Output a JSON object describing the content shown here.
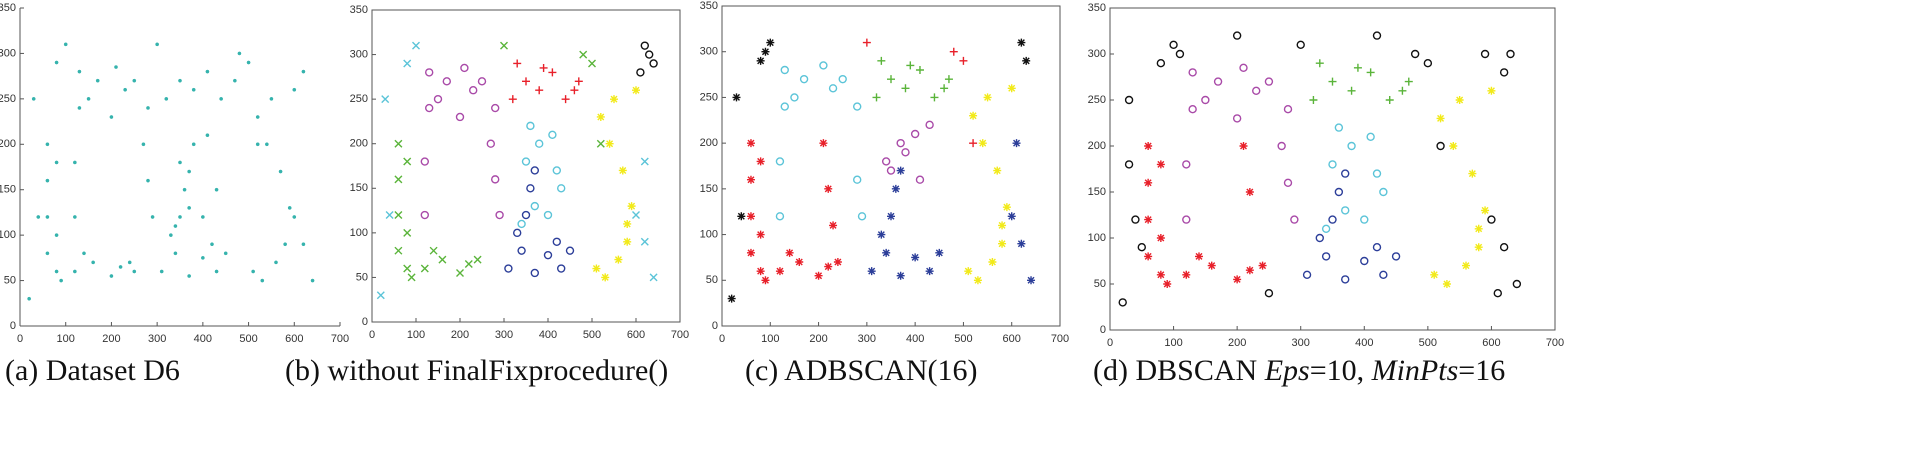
{
  "chart_data": [
    {
      "type": "scatter",
      "caption": "(a) Dataset D6",
      "frame": false,
      "xlim": [
        0,
        700
      ],
      "ylim": [
        0,
        350
      ],
      "xticks": [
        0,
        100,
        200,
        300,
        400,
        500,
        600,
        700
      ],
      "yticks": [
        0,
        50,
        100,
        150,
        200,
        250,
        300,
        350
      ],
      "series": [
        {
          "color": "#35b3ad",
          "marker": ".",
          "x": [
            60,
            60,
            60,
            60,
            80,
            80,
            80,
            120,
            160,
            200,
            240,
            90,
            140,
            220,
            120,
            120,
            130,
            130,
            170,
            210,
            250,
            280,
            280,
            290,
            150,
            230,
            200,
            270,
            310,
            340,
            370,
            400,
            430,
            450,
            350,
            360,
            370,
            330,
            420,
            340,
            370,
            400,
            430,
            350,
            380,
            410,
            320,
            350,
            380,
            410,
            440,
            470,
            510,
            530,
            560,
            580,
            590,
            570,
            540,
            520,
            550,
            600,
            20,
            40,
            80,
            100,
            250,
            300,
            480,
            500,
            520,
            600,
            620,
            640,
            30,
            620
          ],
          "y": [
            200,
            160,
            120,
            80,
            60,
            180,
            100,
            60,
            70,
            55,
            70,
            50,
            80,
            65,
            120,
            180,
            240,
            280,
            270,
            285,
            270,
            240,
            160,
            120,
            250,
            260,
            230,
            200,
            60,
            80,
            55,
            75,
            60,
            80,
            120,
            150,
            170,
            100,
            90,
            110,
            130,
            120,
            150,
            180,
            200,
            210,
            250,
            270,
            260,
            280,
            250,
            270,
            60,
            50,
            70,
            90,
            130,
            170,
            200,
            230,
            250,
            260,
            30,
            120,
            290,
            310,
            60,
            310,
            300,
            290,
            200,
            120,
            90,
            50,
            250,
            280
          ]
        }
      ]
    },
    {
      "type": "scatter",
      "caption": "(b) without FinalFixprocedure()",
      "frame": true,
      "xlim": [
        0,
        700
      ],
      "ylim": [
        0,
        350
      ],
      "xticks": [
        0,
        100,
        200,
        300,
        400,
        500,
        600,
        700
      ],
      "yticks": [
        0,
        50,
        100,
        150,
        200,
        250,
        300,
        350
      ],
      "series": [
        {
          "color": "#5ab43a",
          "marker": "x",
          "x": [
            60,
            60,
            60,
            60,
            80,
            80,
            80,
            120,
            160,
            200,
            240,
            90,
            140,
            220
          ],
          "y": [
            200,
            160,
            120,
            80,
            60,
            180,
            100,
            60,
            70,
            55,
            70,
            50,
            80,
            65
          ]
        },
        {
          "color": "#a94aa8",
          "marker": "o",
          "x": [
            120,
            120,
            130,
            130,
            170,
            210,
            250,
            280,
            280,
            290,
            150,
            230,
            200,
            270
          ],
          "y": [
            120,
            180,
            240,
            280,
            270,
            285,
            270,
            240,
            160,
            120,
            250,
            260,
            230,
            200
          ]
        },
        {
          "color": "#2c3e99",
          "marker": "o",
          "x": [
            310,
            340,
            370,
            400,
            430,
            450,
            350,
            360,
            370,
            330,
            420
          ],
          "y": [
            60,
            80,
            55,
            75,
            60,
            80,
            120,
            150,
            170,
            100,
            90
          ]
        },
        {
          "color": "#5bc4d8",
          "marker": "o",
          "x": [
            340,
            370,
            400,
            430,
            350,
            380,
            410,
            360,
            420
          ],
          "y": [
            110,
            130,
            120,
            150,
            180,
            200,
            210,
            220,
            170
          ]
        },
        {
          "color": "#e8202a",
          "marker": "+",
          "x": [
            320,
            350,
            380,
            410,
            440,
            470,
            330,
            390,
            460
          ],
          "y": [
            250,
            270,
            260,
            280,
            250,
            270,
            290,
            285,
            260
          ]
        },
        {
          "color": "#f2ea1a",
          "marker": "*",
          "x": [
            510,
            530,
            560,
            580,
            590,
            570,
            540,
            520,
            550,
            600,
            580
          ],
          "y": [
            60,
            50,
            70,
            90,
            130,
            170,
            200,
            230,
            250,
            260,
            110
          ]
        },
        {
          "color": "#5bc4d8",
          "marker": "x",
          "x": [
            20,
            40,
            80,
            100,
            600,
            620,
            640,
            30,
            620
          ],
          "y": [
            30,
            120,
            290,
            310,
            120,
            90,
            50,
            250,
            180
          ]
        },
        {
          "color": "#5ab43a",
          "marker": "x",
          "x": [
            500,
            520,
            480,
            300
          ],
          "y": [
            290,
            200,
            300,
            310
          ]
        },
        {
          "color": "#111111",
          "marker": "o",
          "x": [
            620,
            630,
            640,
            610
          ],
          "y": [
            310,
            300,
            290,
            280
          ]
        }
      ]
    },
    {
      "type": "scatter",
      "caption": "(c) ADBSCAN(16)",
      "frame": true,
      "xlim": [
        0,
        700
      ],
      "ylim": [
        0,
        350
      ],
      "xticks": [
        0,
        100,
        200,
        300,
        400,
        500,
        600,
        700
      ],
      "yticks": [
        0,
        50,
        100,
        150,
        200,
        250,
        300,
        350
      ],
      "series": [
        {
          "color": "#e8202a",
          "marker": "*",
          "x": [
            60,
            60,
            60,
            60,
            80,
            80,
            80,
            120,
            160,
            200,
            240,
            90,
            140,
            220,
            210,
            220,
            230
          ],
          "y": [
            200,
            160,
            120,
            80,
            60,
            180,
            100,
            60,
            70,
            55,
            70,
            50,
            80,
            65,
            200,
            150,
            110
          ]
        },
        {
          "color": "#5bc4d8",
          "marker": "o",
          "x": [
            120,
            120,
            130,
            130,
            170,
            210,
            250,
            280,
            280,
            290,
            150,
            230
          ],
          "y": [
            120,
            180,
            240,
            280,
            270,
            285,
            270,
            240,
            160,
            120,
            250,
            260
          ]
        },
        {
          "color": "#2c3e99",
          "marker": "*",
          "x": [
            310,
            340,
            370,
            400,
            430,
            450,
            350,
            360,
            370,
            330
          ],
          "y": [
            60,
            80,
            55,
            75,
            60,
            80,
            120,
            150,
            170,
            100
          ]
        },
        {
          "color": "#a94aa8",
          "marker": "o",
          "x": [
            340,
            370,
            400,
            430,
            350,
            380,
            410
          ],
          "y": [
            180,
            200,
            210,
            220,
            170,
            190,
            160
          ]
        },
        {
          "color": "#5ab43a",
          "marker": "+",
          "x": [
            320,
            350,
            380,
            410,
            440,
            470,
            330,
            390,
            460
          ],
          "y": [
            250,
            270,
            260,
            280,
            250,
            270,
            290,
            285,
            260
          ]
        },
        {
          "color": "#f2ea1a",
          "marker": "*",
          "x": [
            510,
            530,
            560,
            580,
            590,
            570,
            540,
            520,
            550,
            600,
            580
          ],
          "y": [
            60,
            50,
            70,
            90,
            130,
            170,
            200,
            230,
            250,
            260,
            110
          ]
        },
        {
          "color": "#111111",
          "marker": "*",
          "x": [
            20,
            40,
            30,
            80,
            100,
            90,
            620,
            630
          ],
          "y": [
            30,
            120,
            250,
            290,
            310,
            300,
            310,
            290
          ]
        },
        {
          "color": "#2c3e99",
          "marker": "*",
          "x": [
            600,
            620,
            640,
            610
          ],
          "y": [
            120,
            90,
            50,
            200
          ]
        },
        {
          "color": "#e8202a",
          "marker": "+",
          "x": [
            480,
            500,
            520,
            300
          ],
          "y": [
            300,
            290,
            200,
            310
          ]
        }
      ]
    },
    {
      "type": "scatter",
      "caption": [
        "(d) DBSCAN ",
        "Eps",
        "=10, ",
        "MinPts",
        "=16"
      ],
      "frame": true,
      "xlim": [
        0,
        700
      ],
      "ylim": [
        0,
        350
      ],
      "xticks": [
        0,
        100,
        200,
        300,
        400,
        500,
        600,
        700
      ],
      "yticks": [
        0,
        50,
        100,
        150,
        200,
        250,
        300,
        350
      ],
      "series": [
        {
          "color": "#e8202a",
          "marker": "*",
          "x": [
            60,
            60,
            60,
            60,
            80,
            80,
            80,
            120,
            160,
            200,
            240,
            90,
            140,
            220,
            210,
            220
          ],
          "y": [
            200,
            160,
            120,
            80,
            60,
            180,
            100,
            60,
            70,
            55,
            70,
            50,
            80,
            65,
            200,
            150
          ]
        },
        {
          "color": "#a94aa8",
          "marker": "o",
          "x": [
            120,
            120,
            130,
            130,
            170,
            210,
            250,
            280,
            280,
            290,
            150,
            230,
            200,
            270
          ],
          "y": [
            120,
            180,
            240,
            280,
            270,
            285,
            270,
            240,
            160,
            120,
            250,
            260,
            230,
            200
          ]
        },
        {
          "color": "#2c3e99",
          "marker": "o",
          "x": [
            310,
            340,
            370,
            400,
            430,
            450,
            350,
            360,
            370,
            330,
            420
          ],
          "y": [
            60,
            80,
            55,
            75,
            60,
            80,
            120,
            150,
            170,
            100,
            90
          ]
        },
        {
          "color": "#5bc4d8",
          "marker": "o",
          "x": [
            340,
            370,
            400,
            430,
            350,
            380,
            410,
            360,
            420
          ],
          "y": [
            110,
            130,
            120,
            150,
            180,
            200,
            210,
            220,
            170
          ]
        },
        {
          "color": "#5ab43a",
          "marker": "+",
          "x": [
            320,
            350,
            380,
            410,
            440,
            470,
            330,
            390,
            460
          ],
          "y": [
            250,
            270,
            260,
            280,
            250,
            270,
            290,
            285,
            260
          ]
        },
        {
          "color": "#f2ea1a",
          "marker": "*",
          "x": [
            510,
            530,
            560,
            580,
            590,
            570,
            540,
            520,
            550,
            600,
            580
          ],
          "y": [
            60,
            50,
            70,
            90,
            130,
            170,
            200,
            230,
            250,
            260,
            110
          ]
        },
        {
          "color": "#111111",
          "marker": "o",
          "x": [
            20,
            40,
            80,
            100,
            110,
            250,
            300,
            480,
            500,
            520,
            600,
            620,
            630,
            640,
            30,
            620,
            30,
            50,
            590,
            610,
            200,
            420
          ],
          "y": [
            30,
            120,
            290,
            310,
            300,
            40,
            310,
            300,
            290,
            200,
            120,
            90,
            300,
            50,
            250,
            280,
            180,
            90,
            300,
            40,
            320,
            320
          ]
        }
      ]
    }
  ]
}
